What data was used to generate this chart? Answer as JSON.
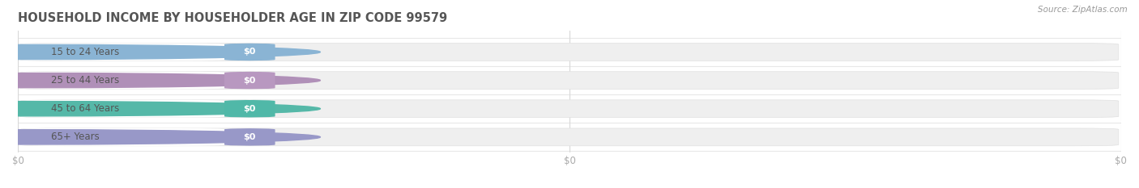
{
  "title": "HOUSEHOLD INCOME BY HOUSEHOLDER AGE IN ZIP CODE 99579",
  "source": "Source: ZipAtlas.com",
  "categories": [
    "15 to 24 Years",
    "25 to 44 Years",
    "45 to 64 Years",
    "65+ Years"
  ],
  "values": [
    0,
    0,
    0,
    0
  ],
  "accent_colors": [
    "#8ab4d4",
    "#b090b8",
    "#55b8a8",
    "#9898c8"
  ],
  "value_pill_colors": [
    "#8ab4d4",
    "#b898c0",
    "#50b8a8",
    "#9898c8"
  ],
  "bar_bg_color": "#efefef",
  "bar_line_color": "#e0e0e0",
  "tick_label_color": "#aaaaaa",
  "title_color": "#555555",
  "source_color": "#999999",
  "cat_text_color": "#555555",
  "value_label_color": "#ffffff",
  "figsize": [
    14.06,
    2.33
  ],
  "dpi": 100
}
